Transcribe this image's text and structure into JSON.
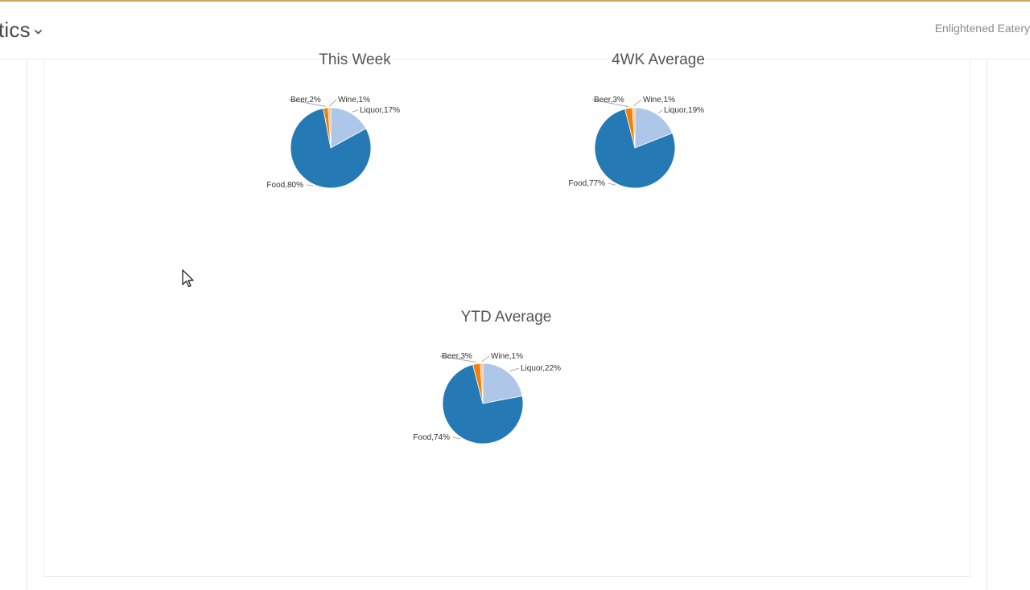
{
  "header": {
    "menu_label": "tics",
    "organization": "Enlightened Eatery"
  },
  "colors": {
    "accent": "#c8a85a",
    "food": "#2579b4",
    "liquor": "#aec7e8",
    "wine": "#ffbb78",
    "beer": "#f07f0e"
  },
  "icons": [
    "chevron-down-icon",
    "mouse-pointer-icon"
  ],
  "chart_data": [
    {
      "type": "pie",
      "title": "This Week",
      "slices": [
        {
          "label": "Food,80%",
          "category": "Food",
          "value": 80
        },
        {
          "label": "Liquor,17%",
          "category": "Liquor",
          "value": 17
        },
        {
          "label": "Wine,1%",
          "category": "Wine",
          "value": 1
        },
        {
          "label": "Beer,2%",
          "category": "Beer",
          "value": 2
        }
      ]
    },
    {
      "type": "pie",
      "title": "4WK Average",
      "slices": [
        {
          "label": "Food,77%",
          "category": "Food",
          "value": 77
        },
        {
          "label": "Liquor,19%",
          "category": "Liquor",
          "value": 19
        },
        {
          "label": "Wine,1%",
          "category": "Wine",
          "value": 1
        },
        {
          "label": "Beer,3%",
          "category": "Beer",
          "value": 3
        }
      ]
    },
    {
      "type": "pie",
      "title": "YTD Average",
      "slices": [
        {
          "label": "Food,74%",
          "category": "Food",
          "value": 74
        },
        {
          "label": "Liquor,22%",
          "category": "Liquor",
          "value": 22
        },
        {
          "label": "Wine,1%",
          "category": "Wine",
          "value": 1
        },
        {
          "label": "Beer,3%",
          "category": "Beer",
          "value": 3
        }
      ]
    }
  ]
}
